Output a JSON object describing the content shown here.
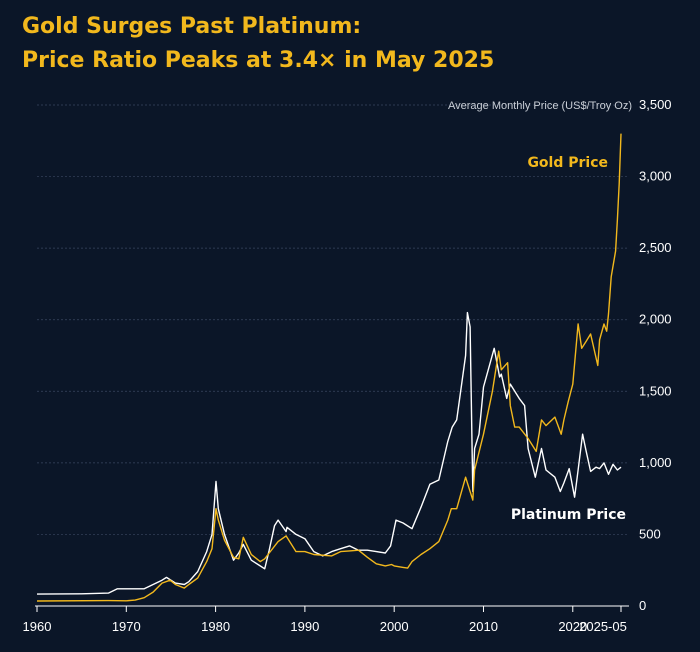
{
  "title": {
    "line1": "Gold Surges Past Platinum:",
    "line2": "Price Ratio Peaks at 3.4× in May 2025"
  },
  "colors": {
    "background": "#0b1628",
    "gold": "#f2b81d",
    "platinum": "#ffffff",
    "grid": "#3a4760"
  },
  "chart_data": {
    "type": "line",
    "title": "Gold Surges Past Platinum: Price Ratio Peaks at 3.4× in May 2025",
    "ylabel": "Average Monthly Price (US$/Troy Oz)",
    "xlabel": "",
    "xlim": [
      1960,
      2025.4
    ],
    "ylim": [
      0,
      3500
    ],
    "grid": true,
    "x_ticks": [
      1960,
      1970,
      1980,
      1990,
      2000,
      2010,
      2020,
      2025.4
    ],
    "x_tick_labels": [
      "1960",
      "1970",
      "1980",
      "1990",
      "2000",
      "2010",
      "2020",
      "2025-05"
    ],
    "y_ticks": [
      0,
      500,
      1000,
      1500,
      2000,
      2500,
      3000,
      3500
    ],
    "y_tick_labels": [
      "0",
      "500",
      "1,000",
      "1,500",
      "2,000",
      "2,500",
      "3,000",
      "3,500"
    ],
    "series": [
      {
        "name": "Gold Price",
        "color": "#f2b81d",
        "x": [
          1960,
          1968,
          1970,
          1971,
          1972,
          1973,
          1974,
          1974.9,
          1975.5,
          1976.5,
          1977,
          1978,
          1979,
          1979.6,
          1980.05,
          1980.3,
          1981,
          1982,
          1982.6,
          1983.1,
          1984,
          1985,
          1985.5,
          1986,
          1987,
          1987.9,
          1989,
          1990,
          1991,
          1993,
          1994,
          1995,
          1996,
          1997,
          1998,
          1999,
          1999.7,
          2000,
          2001,
          2001.5,
          2002,
          2003,
          2004,
          2005,
          2006,
          2006.4,
          2007,
          2008,
          2008.8,
          2009,
          2010,
          2011,
          2011.7,
          2012,
          2012.7,
          2013,
          2013.5,
          2014,
          2015,
          2015.9,
          2016.5,
          2017,
          2018,
          2018.7,
          2019,
          2019.5,
          2020,
          2020.6,
          2021,
          2021.5,
          2022,
          2022.8,
          2023,
          2023.5,
          2023.8,
          2024,
          2024.3,
          2024.8,
          2025,
          2025.2,
          2025.4
        ],
        "y": [
          35,
          38,
          36,
          41,
          58,
          97,
          160,
          180,
          150,
          125,
          150,
          195,
          310,
          400,
          680,
          600,
          460,
          340,
          330,
          480,
          360,
          310,
          330,
          370,
          450,
          490,
          380,
          380,
          360,
          350,
          380,
          385,
          390,
          340,
          295,
          280,
          290,
          280,
          270,
          265,
          310,
          360,
          400,
          450,
          600,
          680,
          680,
          900,
          740,
          950,
          1200,
          1500,
          1780,
          1650,
          1700,
          1400,
          1250,
          1250,
          1170,
          1080,
          1300,
          1260,
          1320,
          1200,
          1300,
          1430,
          1550,
          1970,
          1800,
          1850,
          1900,
          1680,
          1860,
          1970,
          1920,
          2040,
          2300,
          2480,
          2700,
          2950,
          3300
        ]
      },
      {
        "name": "Platinum Price",
        "color": "#ffffff",
        "x": [
          1960,
          1965,
          1968,
          1969,
          1971,
          1972,
          1973,
          1974,
          1974.5,
          1975.5,
          1976.5,
          1977,
          1978,
          1979,
          1979.6,
          1980.05,
          1980.3,
          1981,
          1982,
          1982.6,
          1983.1,
          1984,
          1985,
          1985.5,
          1986,
          1986.6,
          1987,
          1987.9,
          1988,
          1989,
          1990,
          1991,
          1992,
          1993,
          1994,
          1995,
          1996,
          1997,
          1998,
          1999,
          1999.6,
          2000.2,
          2001,
          2002,
          2003,
          2004,
          2005,
          2006,
          2006.5,
          2007,
          2008,
          2008.2,
          2008.5,
          2008.8,
          2009,
          2009.5,
          2010,
          2011.2,
          2011.8,
          2012,
          2012.6,
          2013,
          2014,
          2014.6,
          2015,
          2015.8,
          2016.5,
          2017,
          2018,
          2018.6,
          2019,
          2019.6,
          2020.2,
          2020.5,
          2021.1,
          2021.5,
          2022,
          2022.6,
          2023,
          2023.5,
          2024,
          2024.5,
          2025,
          2025.4
        ],
        "y": [
          83,
          85,
          90,
          120,
          120,
          120,
          150,
          180,
          200,
          160,
          150,
          170,
          240,
          380,
          500,
          870,
          680,
          500,
          320,
          370,
          430,
          320,
          280,
          260,
          390,
          560,
          600,
          520,
          550,
          500,
          470,
          380,
          350,
          380,
          400,
          420,
          390,
          390,
          380,
          370,
          420,
          600,
          580,
          540,
          690,
          850,
          880,
          1150,
          1250,
          1300,
          1750,
          2050,
          1950,
          800,
          1100,
          1200,
          1530,
          1800,
          1600,
          1620,
          1450,
          1550,
          1450,
          1400,
          1100,
          900,
          1100,
          950,
          900,
          800,
          860,
          960,
          760,
          900,
          1200,
          1080,
          940,
          970,
          960,
          1000,
          920,
          990,
          950,
          970
        ]
      }
    ],
    "annotations": [
      {
        "text": "Gold Price",
        "x": 2025.4,
        "y": 3300
      },
      {
        "text": "Platinum Price",
        "x": 2025.4,
        "y": 970
      }
    ]
  }
}
